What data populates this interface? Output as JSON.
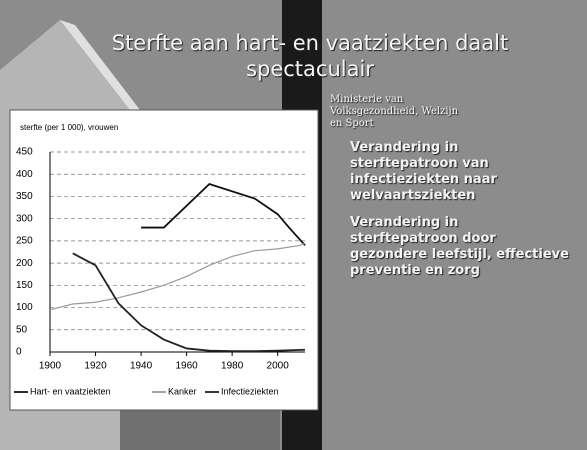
{
  "slide": {
    "title": "Sterfte aan hart- en vaatziekten daalt spectaculair",
    "logo_text": "Ministerie van Volksgezondheid, Welzijn en Sport",
    "bullets": [
      "Verandering in sterftepatroon van infectieziekten naar welvaartsziekten",
      "Verandering in sterftepatroon door gezondere leefstijl, effectieve preventie en zorg"
    ]
  },
  "chart_data": {
    "type": "line",
    "title": "sterfte (per 1 000), vrouwen",
    "xlim": [
      1900,
      2012
    ],
    "xticks": [
      1900,
      1920,
      1940,
      1960,
      1980,
      2000
    ],
    "ylim": [
      0,
      450
    ],
    "yticks": [
      0,
      50,
      100,
      150,
      200,
      250,
      300,
      350,
      400,
      450
    ],
    "grid": true,
    "series": [
      {
        "name": "Hart- en vaatziekten",
        "color": "#111111",
        "x": [
          1940,
          1950,
          1970,
          1990,
          2000,
          2005,
          2012
        ],
        "values": [
          280,
          280,
          378,
          345,
          310,
          280,
          240
        ]
      },
      {
        "name": "Kanker",
        "color": "#9a9a9a",
        "x": [
          1900,
          1910,
          1920,
          1930,
          1940,
          1950,
          1960,
          1970,
          1980,
          1990,
          2000,
          2010,
          2012
        ],
        "values": [
          95,
          108,
          112,
          122,
          135,
          150,
          170,
          195,
          215,
          228,
          232,
          240,
          245
        ]
      },
      {
        "name": "Infectieziekten",
        "color": "#222222",
        "x": [
          1910,
          1920,
          1930,
          1940,
          1950,
          1960,
          1970,
          1980,
          1990,
          2000,
          2012
        ],
        "values": [
          222,
          195,
          110,
          60,
          28,
          8,
          3,
          2,
          2,
          3,
          5
        ]
      }
    ]
  }
}
